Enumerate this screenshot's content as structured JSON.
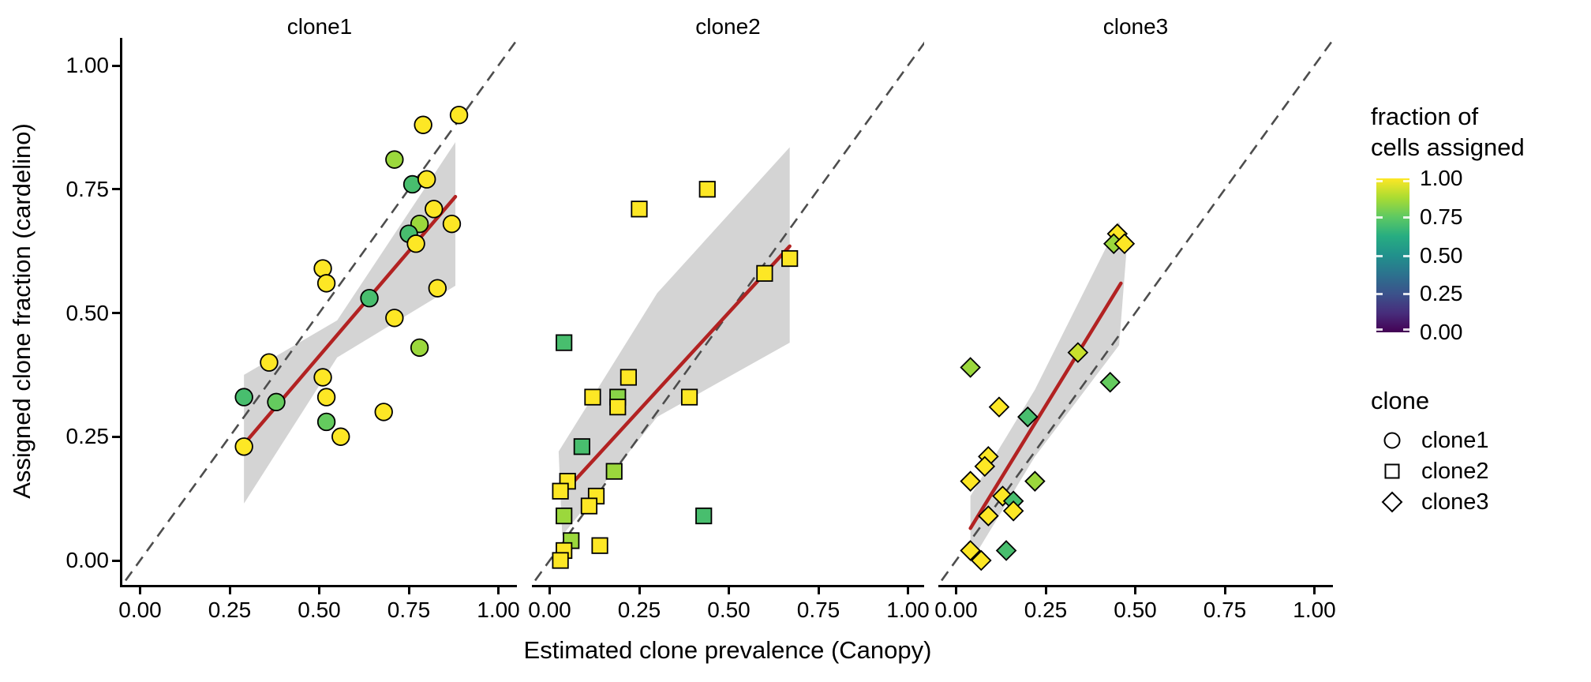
{
  "chart_data": {
    "type": "scatter",
    "xlabel": "Estimated clone prevalence (Canopy)",
    "ylabel": "Assigned clone fraction (cardelino)",
    "xlim": [
      -0.05,
      1.05
    ],
    "ylim": [
      -0.05,
      1.05
    ],
    "x_ticks": {
      "values": [
        0,
        0.25,
        0.5,
        0.75,
        1
      ],
      "labels": [
        "0.00",
        "0.25",
        "0.50",
        "0.75",
        "1.00"
      ]
    },
    "y_ticks": {
      "values": [
        1,
        0.75,
        0.5,
        0.25,
        0
      ],
      "labels": [
        "1.00",
        "0.75",
        "0.50",
        "0.25",
        "0.00"
      ]
    },
    "identity_line": true,
    "color_scale": {
      "name": "viridis",
      "title": [
        "fraction of",
        "cells assigned"
      ],
      "domain": [
        0,
        1
      ],
      "tick_values": [
        1,
        0.75,
        0.5,
        0.25,
        0
      ],
      "tick_labels": [
        "1.00",
        "0.75",
        "0.50",
        "0.25",
        "0.00"
      ]
    },
    "facets": [
      {
        "label": "clone1",
        "shape": "circle",
        "points": [
          [
            0.79,
            0.88,
            1.0
          ],
          [
            0.89,
            0.9,
            1.0
          ],
          [
            0.71,
            0.81,
            0.85
          ],
          [
            0.76,
            0.76,
            0.7
          ],
          [
            0.8,
            0.77,
            1.0
          ],
          [
            0.82,
            0.71,
            1.0
          ],
          [
            0.78,
            0.68,
            0.85
          ],
          [
            0.75,
            0.66,
            0.7
          ],
          [
            0.77,
            0.64,
            1.0
          ],
          [
            0.87,
            0.68,
            1.0
          ],
          [
            0.83,
            0.55,
            1.0
          ],
          [
            0.64,
            0.53,
            0.7
          ],
          [
            0.51,
            0.59,
            1.0
          ],
          [
            0.52,
            0.56,
            1.0
          ],
          [
            0.71,
            0.49,
            1.0
          ],
          [
            0.78,
            0.43,
            0.85
          ],
          [
            0.36,
            0.4,
            1.0
          ],
          [
            0.51,
            0.37,
            1.0
          ],
          [
            0.29,
            0.33,
            0.7
          ],
          [
            0.38,
            0.32,
            0.76
          ],
          [
            0.52,
            0.33,
            1.0
          ],
          [
            0.52,
            0.28,
            0.76
          ],
          [
            0.68,
            0.3,
            1.0
          ],
          [
            0.56,
            0.25,
            1.0
          ],
          [
            0.29,
            0.23,
            1.0
          ]
        ],
        "trend": {
          "start": [
            0.29,
            0.235
          ],
          "end": [
            0.88,
            0.735
          ]
        },
        "band": [
          [
            0.29,
            0.375
          ],
          [
            0.55,
            0.485
          ],
          [
            0.88,
            0.845
          ],
          [
            0.88,
            0.555
          ],
          [
            0.55,
            0.41
          ],
          [
            0.29,
            0.115
          ]
        ]
      },
      {
        "label": "clone2",
        "shape": "square",
        "points": [
          [
            0.44,
            0.75,
            1.0
          ],
          [
            0.25,
            0.71,
            1.0
          ],
          [
            0.67,
            0.61,
            1.0
          ],
          [
            0.6,
            0.58,
            1.0
          ],
          [
            0.04,
            0.44,
            0.7
          ],
          [
            0.22,
            0.37,
            1.0
          ],
          [
            0.12,
            0.33,
            1.0
          ],
          [
            0.19,
            0.33,
            0.82
          ],
          [
            0.19,
            0.31,
            1.0
          ],
          [
            0.39,
            0.33,
            1.0
          ],
          [
            0.09,
            0.23,
            0.7
          ],
          [
            0.18,
            0.18,
            0.85
          ],
          [
            0.05,
            0.16,
            1.0
          ],
          [
            0.03,
            0.14,
            1.0
          ],
          [
            0.13,
            0.13,
            1.0
          ],
          [
            0.11,
            0.11,
            1.0
          ],
          [
            0.04,
            0.09,
            0.85
          ],
          [
            0.43,
            0.09,
            0.7
          ],
          [
            0.06,
            0.04,
            0.85
          ],
          [
            0.04,
            0.02,
            1.0
          ],
          [
            0.14,
            0.03,
            1.0
          ],
          [
            0.03,
            0.0,
            1.0
          ]
        ],
        "trend": {
          "start": [
            0.03,
            0.13
          ],
          "end": [
            0.67,
            0.635
          ]
        },
        "band": [
          [
            0.025,
            0.22
          ],
          [
            0.3,
            0.54
          ],
          [
            0.67,
            0.835
          ],
          [
            0.67,
            0.44
          ],
          [
            0.3,
            0.29
          ],
          [
            0.035,
            0.05
          ]
        ]
      },
      {
        "label": "clone3",
        "shape": "diamond",
        "points": [
          [
            0.45,
            0.66,
            1.0
          ],
          [
            0.44,
            0.64,
            0.85
          ],
          [
            0.47,
            0.64,
            1.0
          ],
          [
            0.34,
            0.42,
            0.92
          ],
          [
            0.04,
            0.39,
            0.85
          ],
          [
            0.43,
            0.36,
            0.76
          ],
          [
            0.12,
            0.31,
            1.0
          ],
          [
            0.2,
            0.29,
            0.7
          ],
          [
            0.09,
            0.21,
            1.0
          ],
          [
            0.08,
            0.19,
            1.0
          ],
          [
            0.04,
            0.16,
            1.0
          ],
          [
            0.22,
            0.16,
            0.85
          ],
          [
            0.13,
            0.13,
            1.0
          ],
          [
            0.16,
            0.12,
            0.7
          ],
          [
            0.09,
            0.09,
            1.0
          ],
          [
            0.16,
            0.1,
            1.0
          ],
          [
            0.04,
            0.02,
            1.0
          ],
          [
            0.07,
            0.0,
            1.0
          ],
          [
            0.14,
            0.02,
            0.7
          ]
        ],
        "trend": {
          "start": [
            0.04,
            0.065
          ],
          "end": [
            0.46,
            0.56
          ]
        },
        "band": [
          [
            0.04,
            0.13
          ],
          [
            0.22,
            0.345
          ],
          [
            0.455,
            0.685
          ],
          [
            0.475,
            0.62
          ],
          [
            0.455,
            0.435
          ],
          [
            0.22,
            0.21
          ],
          [
            0.04,
            -0.005
          ]
        ]
      }
    ]
  },
  "legend": {
    "shape": {
      "title": "clone",
      "items": [
        {
          "shape": "circle",
          "label": "clone1"
        },
        {
          "shape": "square",
          "label": "clone2"
        },
        {
          "shape": "diamond",
          "label": "clone3"
        }
      ]
    }
  },
  "colors": {
    "trend_line": "#B22222",
    "ci_band": "#D4D4D4",
    "identity_line": "#4D4D4D",
    "strip_background": "#CDCDCD",
    "axis_text": "#000000",
    "marker_stroke": "#000000",
    "viridis_stops": [
      "#440154",
      "#472D7B",
      "#3B528B",
      "#2C728E",
      "#21918C",
      "#27AD81",
      "#5EC962",
      "#AADC32",
      "#FDE725"
    ]
  }
}
